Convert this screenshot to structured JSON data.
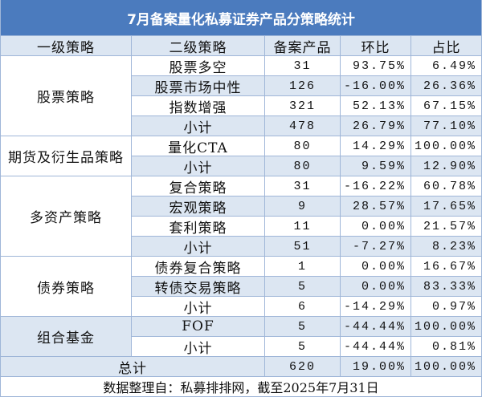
{
  "chart_data": {
    "type": "table",
    "title": "7月备案量化私募证券产品分策略统计",
    "columns": [
      "一级策略",
      "二级策略",
      "备案产品",
      "环比",
      "占比"
    ],
    "groups": [
      {
        "category": "股票策略",
        "rows": [
          {
            "strategy": "股票多空",
            "count": 31,
            "mom": "93.75%",
            "share": "6.49%"
          },
          {
            "strategy": "股票市场中性",
            "count": 126,
            "mom": "-16.00%",
            "share": "26.36%"
          },
          {
            "strategy": "指数增强",
            "count": 321,
            "mom": "52.13%",
            "share": "67.15%"
          },
          {
            "strategy": "小计",
            "count": 478,
            "mom": "26.79%",
            "share": "77.10%"
          }
        ]
      },
      {
        "category": "期货及衍生品策略",
        "rows": [
          {
            "strategy": "量化CTA",
            "count": 80,
            "mom": "14.29%",
            "share": "100.00%"
          },
          {
            "strategy": "小计",
            "count": 80,
            "mom": "9.59%",
            "share": "12.90%"
          }
        ]
      },
      {
        "category": "多资产策略",
        "rows": [
          {
            "strategy": "复合策略",
            "count": 31,
            "mom": "-16.22%",
            "share": "60.78%"
          },
          {
            "strategy": "宏观策略",
            "count": 9,
            "mom": "28.57%",
            "share": "17.65%"
          },
          {
            "strategy": "套利策略",
            "count": 11,
            "mom": "0.00%",
            "share": "21.57%"
          },
          {
            "strategy": "小计",
            "count": 51,
            "mom": "-7.27%",
            "share": "8.23%"
          }
        ]
      },
      {
        "category": "债券策略",
        "rows": [
          {
            "strategy": "债券复合策略",
            "count": 1,
            "mom": "0.00%",
            "share": "16.67%"
          },
          {
            "strategy": "转债交易策略",
            "count": 5,
            "mom": "0.00%",
            "share": "83.33%"
          },
          {
            "strategy": "小计",
            "count": 6,
            "mom": "-14.29%",
            "share": "0.97%"
          }
        ]
      },
      {
        "category": "组合基金",
        "rows": [
          {
            "strategy": "FOF",
            "count": 5,
            "mom": "-44.44%",
            "share": "100.00%"
          },
          {
            "strategy": "小计",
            "count": 5,
            "mom": "-44.44%",
            "share": "0.81%"
          }
        ]
      }
    ],
    "total": {
      "label": "总计",
      "count": 620,
      "mom": "19.00%",
      "share": "100.00%"
    },
    "note": "数据整理自：私募排排网，截至2025年7月31日"
  },
  "colors": {
    "title_bg": "#4b7bbe",
    "title_text": "#ffffff",
    "band": "#dce6f2",
    "plain": "#ffffff",
    "grid_line": "#9fb6d8",
    "text": "#111111"
  }
}
